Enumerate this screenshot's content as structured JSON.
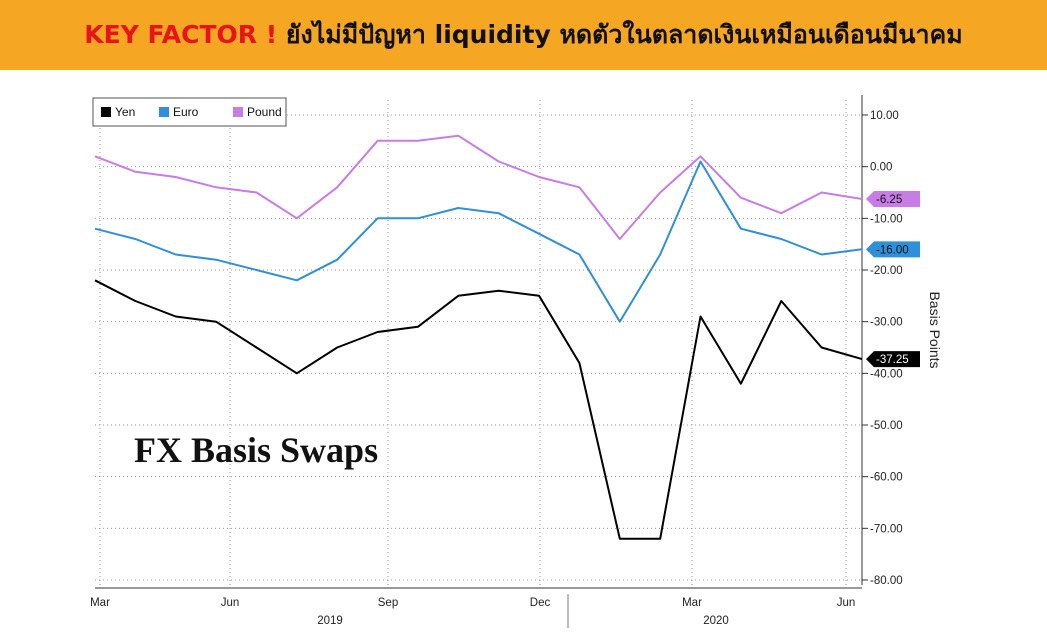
{
  "banner": {
    "key": "KEY FACTOR !",
    "rest": "ยังไม่มีปัญหา liquidity หดตัวในตลาดเงินเหมือนเดือนมีนาคม"
  },
  "chart_data": {
    "type": "line",
    "title": "FX Basis Swaps",
    "ylabel": "Basis Points",
    "ylim": [
      -80,
      10
    ],
    "yticks": [
      "10.00",
      "0.00",
      "-10.00",
      "-20.00",
      "-30.00",
      "-40.00",
      "-50.00",
      "-60.00",
      "-70.00",
      "-80.00"
    ],
    "xticks": [
      "Mar",
      "Jun",
      "Sep",
      "Dec",
      "Mar",
      "Jun"
    ],
    "years": [
      "2019",
      "2020"
    ],
    "x": [
      "2019-03",
      "2019-04",
      "2019-05",
      "2019-06",
      "2019-07",
      "2019-08",
      "2019-09",
      "2019-10",
      "2019-11",
      "2019-12",
      "2020-01",
      "2020-02",
      "2020-03a",
      "2020-03b",
      "2020-03c",
      "2020-04a",
      "2020-04b",
      "2020-05a",
      "2020-05b",
      "2020-06"
    ],
    "legend_position": "top-left",
    "grid": true,
    "series": [
      {
        "name": "Yen",
        "color": "#000000",
        "last_label": "-37.25",
        "values": [
          -22,
          -26,
          -29,
          -30,
          -35,
          -40,
          -35,
          -32,
          -31,
          -25,
          -24,
          -25,
          -38,
          -72,
          -72,
          -29,
          -42,
          -26,
          -35,
          -37.25
        ]
      },
      {
        "name": "Euro",
        "color": "#2f8fd8",
        "last_label": "-16.00",
        "values": [
          -12,
          -14,
          -17,
          -18,
          -20,
          -22,
          -18,
          -10,
          -10,
          -8,
          -9,
          -13,
          -17,
          -30,
          -17,
          1,
          -12,
          -14,
          -17,
          -16
        ]
      },
      {
        "name": "Pound",
        "color": "#c77ce6",
        "last_label": "-6.25",
        "values": [
          2,
          -1,
          -2,
          -4,
          -5,
          -10,
          -4,
          5,
          5,
          6,
          1,
          -2,
          -4,
          -14,
          -5,
          2,
          -6,
          -9,
          -5,
          -6.25
        ]
      }
    ]
  }
}
